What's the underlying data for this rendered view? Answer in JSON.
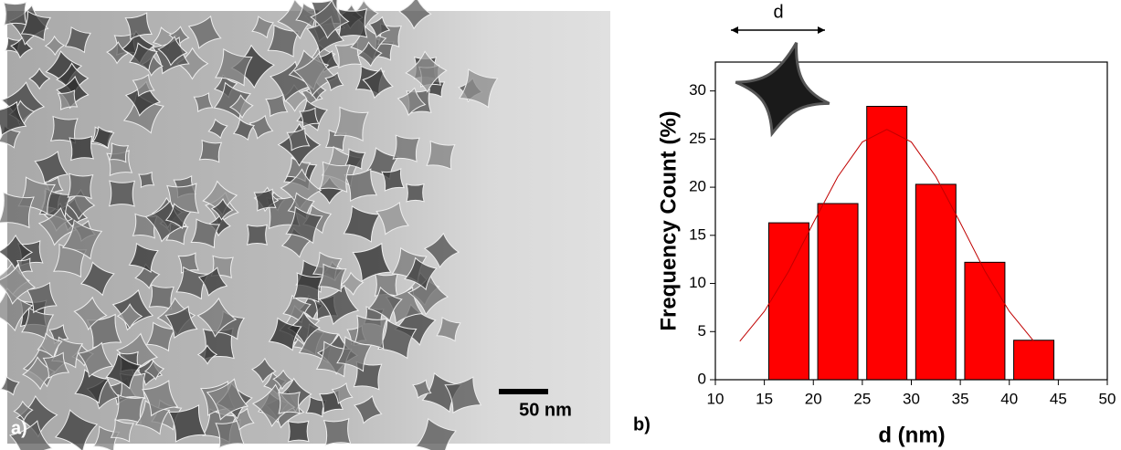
{
  "panel_a": {
    "label": "a)",
    "scale_bar": "50 nm"
  },
  "chart_data": {
    "type": "histogram",
    "panel_label": "b)",
    "inset_label": "d",
    "xlabel": "d (nm)",
    "ylabel": "Frequency Count (%)",
    "bins": [
      15,
      20,
      25,
      30,
      35,
      40,
      45
    ],
    "values": [
      16.3,
      18.3,
      28.4,
      20.3,
      12.2,
      4.1
    ],
    "color": "#ff0000",
    "fit": {
      "x": [
        12.5,
        15,
        17.5,
        20,
        22.5,
        25,
        27.5,
        30,
        32.5,
        35,
        37.5,
        40,
        42.5
      ],
      "values": [
        4.0,
        7.1,
        11.3,
        16.3,
        21.1,
        24.7,
        26.0,
        24.7,
        21.1,
        16.3,
        11.3,
        7.1,
        4.0
      ],
      "color": "#c00000"
    },
    "xlim": [
      10,
      50
    ],
    "xticks": [
      10,
      15,
      20,
      25,
      30,
      35,
      40,
      45,
      50
    ],
    "ylim": [
      0,
      33
    ],
    "yticks": [
      0,
      5,
      10,
      15,
      20,
      25,
      30
    ]
  }
}
